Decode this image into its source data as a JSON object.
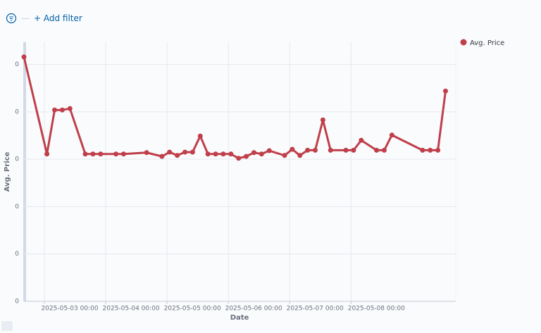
{
  "toolbar": {
    "add_filter": "+ Add filter"
  },
  "chart_data": {
    "type": "line",
    "x_label": "Date",
    "y_label": "Avg. Price",
    "x": [
      "2025-05-02 16:00",
      "2025-05-03 01:00",
      "2025-05-03 04:00",
      "2025-05-03 07:00",
      "2025-05-03 10:00",
      "2025-05-03 16:00",
      "2025-05-03 19:00",
      "2025-05-03 22:00",
      "2025-05-04 04:00",
      "2025-05-04 07:00",
      "2025-05-04 16:00",
      "2025-05-04 22:00",
      "2025-05-05 01:00",
      "2025-05-05 04:00",
      "2025-05-05 07:00",
      "2025-05-05 10:00",
      "2025-05-05 13:00",
      "2025-05-05 16:00",
      "2025-05-05 19:00",
      "2025-05-05 22:00",
      "2025-05-06 01:00",
      "2025-05-06 04:00",
      "2025-05-06 07:00",
      "2025-05-06 10:00",
      "2025-05-06 13:00",
      "2025-05-06 16:00",
      "2025-05-06 22:00",
      "2025-05-07 01:00",
      "2025-05-07 04:00",
      "2025-05-07 07:00",
      "2025-05-07 10:00",
      "2025-05-07 13:00",
      "2025-05-07 16:00",
      "2025-05-07 22:00",
      "2025-05-08 01:00",
      "2025-05-08 04:00",
      "2025-05-08 10:00",
      "2025-05-08 13:00",
      "2025-05-08 16:00",
      "2025-05-09 04:00",
      "2025-05-09 07:00",
      "2025-05-09 10:00",
      "2025-05-09 13:00"
    ],
    "series": [
      {
        "name": "Avg. Price",
        "color": "#bf3f4a",
        "values": [
          5.16,
          3.11,
          4.04,
          4.04,
          4.07,
          3.11,
          3.11,
          3.11,
          3.11,
          3.11,
          3.14,
          3.06,
          3.15,
          3.08,
          3.15,
          3.15,
          3.49,
          3.11,
          3.11,
          3.11,
          3.11,
          3.02,
          3.06,
          3.14,
          3.11,
          3.18,
          3.08,
          3.21,
          3.08,
          3.19,
          3.19,
          3.83,
          3.19,
          3.19,
          3.19,
          3.4,
          3.19,
          3.19,
          3.51,
          3.19,
          3.19,
          3.19,
          4.44
        ]
      }
    ],
    "xlim": [
      "2025-05-02 16:00",
      "2025-05-09 17:00"
    ],
    "xticks": [
      "2025-05-03 00:00",
      "2025-05-04 00:00",
      "2025-05-05 00:00",
      "2025-05-06 00:00",
      "2025-05-07 00:00",
      "2025-05-08 00:00"
    ],
    "ylim": [
      0,
      5.47
    ],
    "yticks": [
      0,
      {
        "value": 1,
        "label": "0"
      },
      {
        "value": 2,
        "label": "0"
      },
      {
        "value": 3,
        "label": "0"
      },
      {
        "value": 4,
        "label": "0"
      },
      {
        "value": 5,
        "label": "0"
      }
    ],
    "grid": true,
    "legend": "right"
  }
}
